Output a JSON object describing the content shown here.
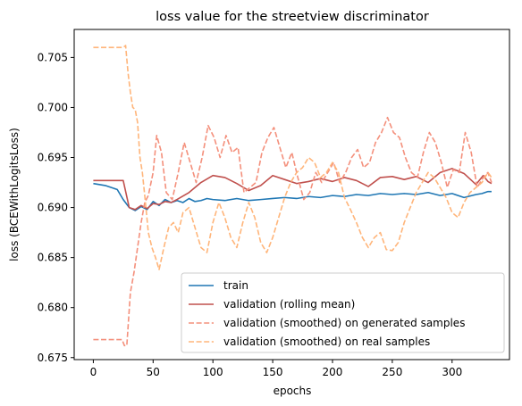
{
  "chart_data": {
    "type": "line",
    "title": "loss value for the streetview discriminator",
    "xlabel": "epochs",
    "ylabel": "loss (BCEWithLogitsLoss)",
    "xlim": [
      -16,
      348
    ],
    "ylim": [
      0.6748,
      0.7078
    ],
    "xticks": [
      0,
      50,
      100,
      150,
      200,
      250,
      300
    ],
    "yticks": [
      0.675,
      0.68,
      0.685,
      0.69,
      0.695,
      0.7,
      0.705
    ],
    "grid": false,
    "legend_position": "lower-right",
    "series": [
      {
        "name": "train",
        "color": "#1f77b4",
        "dashed": false,
        "x": [
          0,
          5,
          10,
          15,
          20,
          25,
          30,
          35,
          40,
          45,
          50,
          55,
          60,
          65,
          70,
          75,
          80,
          85,
          90,
          95,
          100,
          110,
          120,
          130,
          140,
          150,
          160,
          170,
          180,
          190,
          200,
          210,
          220,
          230,
          240,
          250,
          260,
          270,
          280,
          290,
          300,
          310,
          320,
          325,
          330,
          333
        ],
        "y": [
          0.6924,
          0.6923,
          0.6922,
          0.692,
          0.6918,
          0.6908,
          0.69,
          0.6897,
          0.6901,
          0.6898,
          0.6906,
          0.6902,
          0.6908,
          0.6905,
          0.6907,
          0.6905,
          0.6909,
          0.6906,
          0.6907,
          0.6909,
          0.6908,
          0.6907,
          0.6909,
          0.6907,
          0.6908,
          0.6909,
          0.691,
          0.6909,
          0.6911,
          0.691,
          0.6912,
          0.6911,
          0.6913,
          0.6912,
          0.6914,
          0.6913,
          0.6914,
          0.6913,
          0.6915,
          0.6912,
          0.6914,
          0.691,
          0.6913,
          0.6914,
          0.6916,
          0.6916
        ]
      },
      {
        "name": "validation (rolling mean)",
        "color": "#c0504d",
        "dashed": false,
        "x": [
          0,
          20,
          25,
          30,
          35,
          40,
          45,
          50,
          55,
          60,
          65,
          70,
          80,
          90,
          100,
          110,
          120,
          130,
          140,
          150,
          160,
          170,
          180,
          190,
          200,
          210,
          220,
          230,
          240,
          250,
          260,
          270,
          280,
          290,
          300,
          310,
          320,
          326,
          330,
          333
        ],
        "y": [
          0.6927,
          0.6927,
          0.6927,
          0.69,
          0.6898,
          0.6902,
          0.6899,
          0.6904,
          0.6903,
          0.6906,
          0.6905,
          0.6908,
          0.6915,
          0.6925,
          0.6932,
          0.693,
          0.6924,
          0.6917,
          0.6922,
          0.6932,
          0.6928,
          0.6924,
          0.6926,
          0.6929,
          0.6926,
          0.693,
          0.6927,
          0.6921,
          0.693,
          0.6931,
          0.6928,
          0.6931,
          0.6925,
          0.6935,
          0.6939,
          0.6934,
          0.6923,
          0.6932,
          0.6926,
          0.6924
        ]
      },
      {
        "name": "validation (smoothed) on generated samples",
        "color": "#f4907c",
        "dashed": true,
        "x": [
          0,
          24,
          26,
          28,
          31,
          34,
          37,
          40,
          43,
          46,
          50,
          53,
          57,
          61,
          66,
          71,
          76,
          81,
          86,
          91,
          96,
          101,
          106,
          111,
          116,
          121,
          126,
          131,
          136,
          141,
          146,
          151,
          156,
          161,
          166,
          171,
          176,
          181,
          186,
          191,
          196,
          201,
          206,
          211,
          216,
          221,
          226,
          231,
          236,
          241,
          246,
          251,
          256,
          261,
          266,
          271,
          276,
          281,
          286,
          291,
          296,
          301,
          306,
          311,
          316,
          321,
          326,
          330,
          333
        ],
        "y": [
          0.6768,
          0.6768,
          0.6762,
          0.6762,
          0.6815,
          0.6835,
          0.686,
          0.6885,
          0.6905,
          0.6912,
          0.6935,
          0.6972,
          0.6955,
          0.6915,
          0.6908,
          0.6935,
          0.6965,
          0.6945,
          0.6925,
          0.695,
          0.6982,
          0.697,
          0.695,
          0.6972,
          0.6955,
          0.696,
          0.6915,
          0.692,
          0.6925,
          0.6955,
          0.697,
          0.698,
          0.696,
          0.694,
          0.6955,
          0.693,
          0.6908,
          0.6915,
          0.6935,
          0.6925,
          0.6935,
          0.6945,
          0.6925,
          0.6935,
          0.695,
          0.6958,
          0.694,
          0.6945,
          0.6965,
          0.6975,
          0.699,
          0.6975,
          0.697,
          0.695,
          0.6935,
          0.693,
          0.6955,
          0.6975,
          0.6965,
          0.6945,
          0.692,
          0.6938,
          0.6935,
          0.6975,
          0.6955,
          0.692,
          0.693,
          0.6935,
          0.6925
        ]
      },
      {
        "name": "validation (smoothed) on real samples",
        "color": "#ffb57a",
        "dashed": true,
        "x": [
          0,
          25,
          27,
          29,
          31,
          33,
          35,
          37,
          39,
          41,
          43,
          46,
          49,
          52,
          55,
          59,
          63,
          67,
          71,
          75,
          80,
          85,
          90,
          95,
          100,
          105,
          110,
          115,
          120,
          125,
          130,
          135,
          140,
          145,
          150,
          155,
          160,
          165,
          170,
          175,
          180,
          185,
          190,
          195,
          200,
          205,
          210,
          215,
          220,
          225,
          230,
          235,
          240,
          245,
          250,
          255,
          260,
          265,
          270,
          275,
          280,
          285,
          290,
          295,
          300,
          305,
          310,
          315,
          320,
          325,
          330,
          333
        ],
        "y": [
          0.706,
          0.706,
          0.7062,
          0.7035,
          0.7015,
          0.7,
          0.6998,
          0.6985,
          0.695,
          0.6935,
          0.6912,
          0.6875,
          0.686,
          0.685,
          0.6838,
          0.686,
          0.688,
          0.6885,
          0.6875,
          0.6895,
          0.69,
          0.688,
          0.686,
          0.6855,
          0.6885,
          0.6905,
          0.689,
          0.687,
          0.686,
          0.6885,
          0.6905,
          0.689,
          0.6865,
          0.6855,
          0.687,
          0.689,
          0.691,
          0.6925,
          0.6935,
          0.694,
          0.695,
          0.6945,
          0.693,
          0.6935,
          0.6945,
          0.6935,
          0.691,
          0.6898,
          0.6885,
          0.687,
          0.686,
          0.687,
          0.6875,
          0.6858,
          0.6857,
          0.6865,
          0.6885,
          0.69,
          0.6915,
          0.6925,
          0.6935,
          0.693,
          0.692,
          0.691,
          0.6895,
          0.689,
          0.6905,
          0.6915,
          0.692,
          0.6925,
          0.6935,
          0.693
        ]
      }
    ]
  }
}
